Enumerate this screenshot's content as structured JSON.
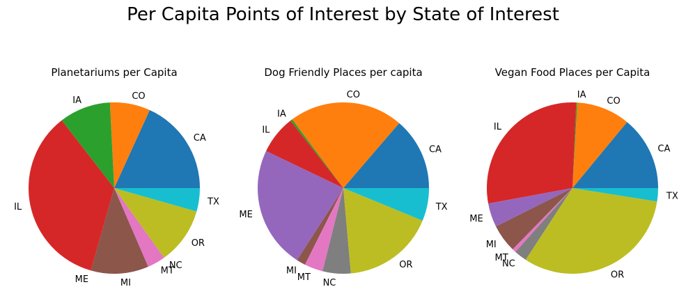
{
  "suptitle": "Per Capita Points of Interest by State of Interest",
  "chart_data": [
    {
      "type": "pie",
      "title": "Planetariums per Capita",
      "categories": [
        "CA",
        "CO",
        "IA",
        "IL",
        "ME",
        "MI",
        "MT",
        "NC",
        "OR",
        "TX"
      ],
      "values": [
        18.2,
        7.6,
        9.7,
        35.1,
        0.0,
        10.9,
        3.4,
        0.0,
        10.7,
        4.4
      ],
      "colors": [
        "#1f77b4",
        "#ff7f0e",
        "#2ca02c",
        "#d62728",
        "#9467bd",
        "#8c564b",
        "#e377c2",
        "#7f7f7f",
        "#bcbd22",
        "#17becf"
      ]
    },
    {
      "type": "pie",
      "title": "Dog Friendly Places per capita",
      "categories": [
        "CA",
        "CO",
        "IA",
        "IL",
        "ME",
        "MI",
        "MT",
        "NC",
        "OR",
        "TX"
      ],
      "values": [
        13.7,
        21.5,
        0.4,
        7.3,
        23.0,
        1.7,
        3.5,
        5.3,
        17.4,
        6.2
      ],
      "colors": [
        "#1f77b4",
        "#ff7f0e",
        "#2ca02c",
        "#d62728",
        "#9467bd",
        "#8c564b",
        "#e377c2",
        "#7f7f7f",
        "#bcbd22",
        "#17becf"
      ]
    },
    {
      "type": "pie",
      "title": "Vegan Food Places per Capita",
      "categories": [
        "CA",
        "CO",
        "IA",
        "IL",
        "ME",
        "MI",
        "MT",
        "NC",
        "OR",
        "TX"
      ],
      "values": [
        14.0,
        10.1,
        0.2,
        28.6,
        4.5,
        5.3,
        0.7,
        2.4,
        31.7,
        2.5
      ],
      "colors": [
        "#1f77b4",
        "#ff7f0e",
        "#2ca02c",
        "#d62728",
        "#9467bd",
        "#8c564b",
        "#e377c2",
        "#7f7f7f",
        "#bcbd22",
        "#17becf"
      ]
    }
  ]
}
